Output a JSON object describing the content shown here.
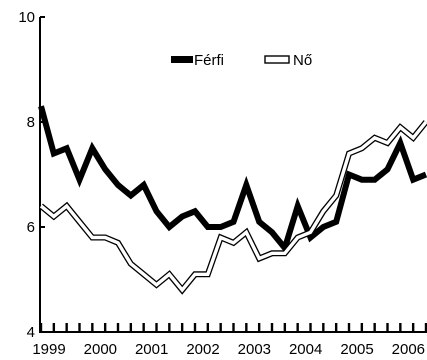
{
  "chart_data": {
    "type": "line",
    "title": "",
    "xlabel": "",
    "ylabel": "",
    "xlim": [
      1999.0,
      2006.5
    ],
    "ylim": [
      4,
      10
    ],
    "y_ticks": [
      4,
      6,
      8,
      10
    ],
    "x_tick_labels": [
      {
        "x": 1999.0,
        "label": "1999"
      },
      {
        "x": 2000.0,
        "label": "2000"
      },
      {
        "x": 2001.0,
        "label": "2001"
      },
      {
        "x": 2002.0,
        "label": "2002"
      },
      {
        "x": 2003.0,
        "label": "2003"
      },
      {
        "x": 2004.0,
        "label": "2004"
      },
      {
        "x": 2005.0,
        "label": "2005"
      },
      {
        "x": 2006.0,
        "label": "2006"
      }
    ],
    "x_minor_step": 0.25,
    "legend": {
      "position": "top-center"
    },
    "grid": false,
    "series": [
      {
        "name": "Férfi",
        "style": "thick-black",
        "color": "#000000",
        "x": [
          1999.0,
          1999.25,
          1999.5,
          1999.75,
          2000.0,
          2000.25,
          2000.5,
          2000.75,
          2001.0,
          2001.25,
          2001.5,
          2001.75,
          2002.0,
          2002.25,
          2002.5,
          2002.75,
          2003.0,
          2003.25,
          2003.5,
          2003.75,
          2004.0,
          2004.25,
          2004.5,
          2004.75,
          2005.0,
          2005.25,
          2005.5,
          2005.75,
          2006.0,
          2006.25,
          2006.5
        ],
        "values": [
          8.3,
          7.4,
          7.5,
          6.9,
          7.5,
          7.1,
          6.8,
          6.6,
          6.8,
          6.3,
          6.0,
          6.2,
          6.3,
          6.0,
          6.0,
          6.1,
          6.8,
          6.1,
          5.9,
          5.6,
          6.4,
          5.8,
          6.0,
          6.1,
          7.0,
          6.9,
          6.9,
          7.1,
          7.6,
          6.9,
          7.0
        ]
      },
      {
        "name": "Nő",
        "style": "hollow-outline",
        "color": "#000000",
        "x": [
          1999.0,
          1999.25,
          1999.5,
          1999.75,
          2000.0,
          2000.25,
          2000.5,
          2000.75,
          2001.0,
          2001.25,
          2001.5,
          2001.75,
          2002.0,
          2002.25,
          2002.5,
          2002.75,
          2003.0,
          2003.25,
          2003.5,
          2003.75,
          2004.0,
          2004.25,
          2004.5,
          2004.75,
          2005.0,
          2005.25,
          2005.5,
          2005.75,
          2006.0,
          2006.25,
          2006.5
        ],
        "values": [
          6.4,
          6.2,
          6.4,
          6.1,
          5.8,
          5.8,
          5.7,
          5.3,
          5.1,
          4.9,
          5.1,
          4.8,
          5.1,
          5.1,
          5.8,
          5.7,
          5.9,
          5.4,
          5.5,
          5.5,
          5.8,
          5.9,
          6.3,
          6.6,
          7.4,
          7.5,
          7.7,
          7.6,
          7.9,
          7.7,
          8.0
        ]
      }
    ]
  }
}
